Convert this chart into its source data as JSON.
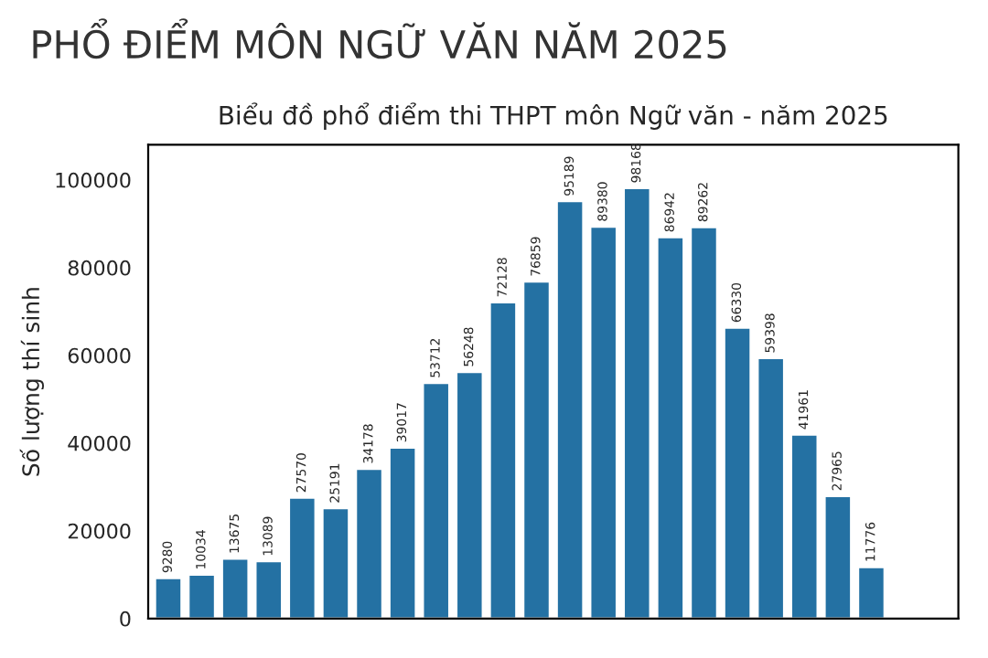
{
  "chart_data": {
    "type": "bar",
    "title": "PHỔ ĐIỂM MÔN NGỮ VĂN NĂM 2025",
    "subtitle": "Biểu đồ phổ điểm thi THPT môn Ngữ văn - năm 2025",
    "ylabel": "Số lượng thí sinh",
    "categories": [
      null,
      null,
      null,
      null,
      null,
      null,
      null,
      null,
      null,
      null,
      null,
      null,
      null,
      null,
      null,
      null,
      null,
      null,
      null,
      null,
      null,
      null,
      null,
      null
    ],
    "values": [
      9280,
      10034,
      13675,
      13089,
      27570,
      25191,
      34178,
      39017,
      53712,
      56248,
      72128,
      76859,
      95189,
      89380,
      98168,
      86942,
      89262,
      66330,
      59398,
      41961,
      27965,
      11776,
      null,
      null
    ],
    "color": "#2471a3",
    "data_labels": true,
    "ylim": [
      0,
      108000
    ],
    "yticks": [
      0,
      20000,
      40000,
      60000,
      80000,
      100000
    ],
    "tick_labels": "y",
    "grid": false
  }
}
